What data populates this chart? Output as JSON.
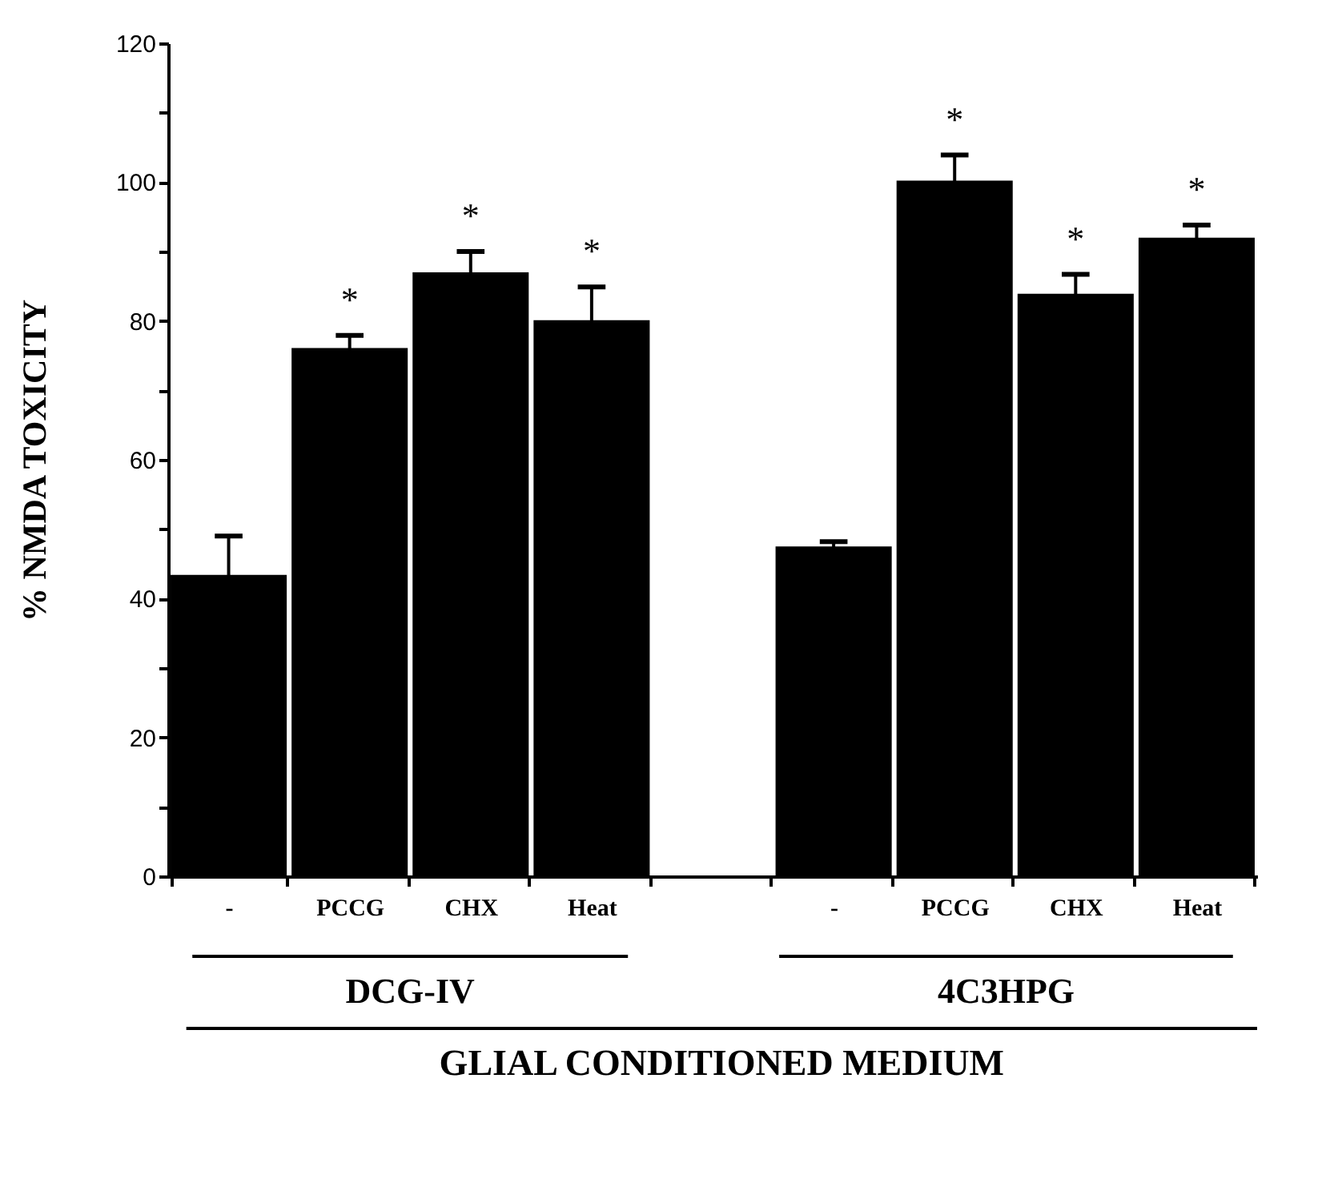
{
  "chart_data": {
    "type": "bar",
    "ylabel": "% NMDA TOXICITY",
    "categories": [
      "-",
      "PCCG",
      "CHX",
      "Heat",
      null,
      "-",
      "PCCG",
      "CHX",
      "Heat"
    ],
    "values": [
      43.4,
      76.1,
      87.0,
      80.1,
      null,
      47.5,
      100.2,
      83.9,
      92.0
    ],
    "errors": [
      5.6,
      1.8,
      3.0,
      4.8,
      null,
      0.7,
      3.7,
      2.8,
      1.8
    ],
    "value_labels": [
      null,
      "*",
      "*",
      "*",
      null,
      null,
      "*",
      "*",
      "*"
    ],
    "color": "#000000",
    "ylim": [
      0,
      120
    ],
    "yticks": [
      0,
      {
        "value": 10,
        "label": null
      },
      20,
      {
        "value": 30,
        "label": null
      },
      40,
      {
        "value": 50,
        "label": null
      },
      60,
      {
        "value": 70,
        "label": null
      },
      80,
      {
        "value": 90,
        "label": null
      },
      100,
      {
        "value": 110,
        "label": null
      },
      120
    ],
    "grid": false,
    "annotations": [
      "DCG-IV",
      "4C3HPG",
      "GLIAL CONDITIONED MEDIUM"
    ]
  }
}
